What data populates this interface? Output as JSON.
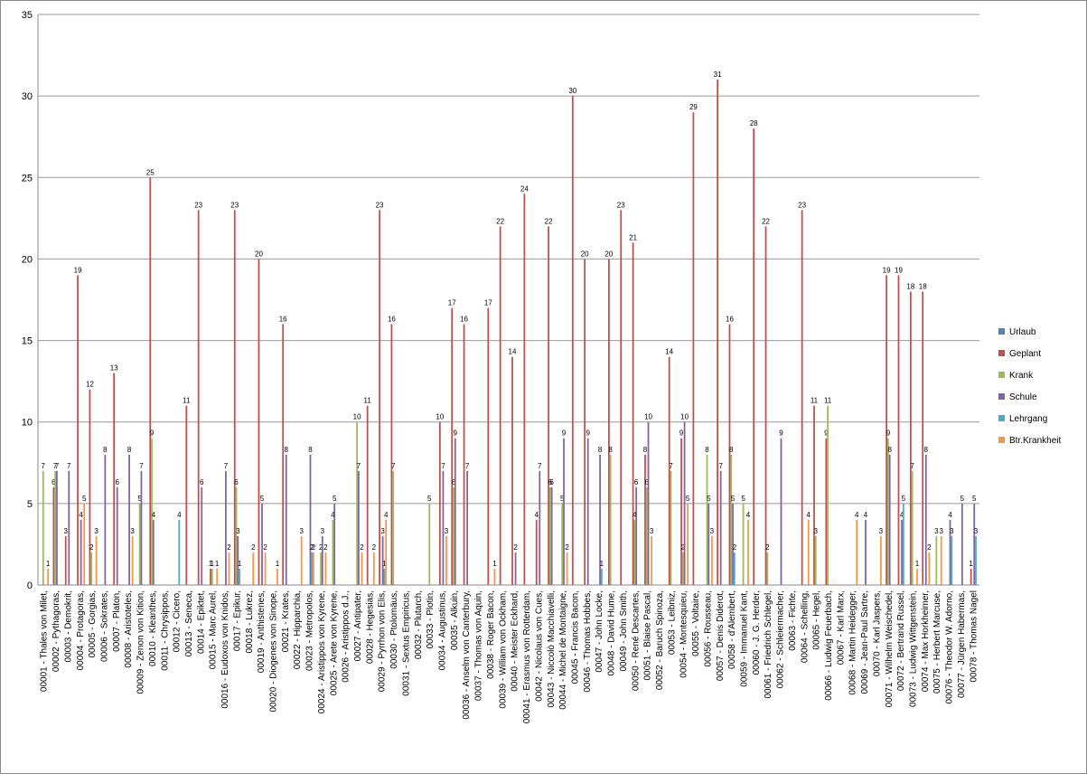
{
  "chart_data": {
    "type": "bar",
    "categories": [
      "00001 - Thales von Milet,",
      "00002 - Pythagoras,",
      "00003 - Demokrit,",
      "00004 - Protagoras,",
      "00005 - Gorgias,",
      "00006 - Sokrates,",
      "00007 - Platon,",
      "00008 - Aristoteles,",
      "00009 - Zenon von Kition,",
      "00010 - Kleanthes,",
      "00011 - Chrysippos,",
      "00012 - Cicero,",
      "00013 - Seneca,",
      "00014 - Epiktet,",
      "00015 - Marc Aurel,",
      "00016 - Eudoxos von Knidos,",
      "00017 - Epikur,",
      "00018 - Lukrez,",
      "00019 - Anthistenes,",
      "00020 - Diogenes von Sinope,",
      "00021 - Krates,",
      "00022 - Hipparchia,",
      "00023 - Metropolos,",
      "00024 - Aristippos von Kyrene,",
      "00025 - Arete von Kyrene,",
      "00026 - Aristippos d.J.,",
      "00027 - Antipater,",
      "00028 - Hegesias,",
      "00029 - Pyrrhon von Elis,",
      "00030 - Ptolomäus,",
      "00031 - Sextus Empiricus,",
      "00032 - Plutarch,",
      "00033 - Plotin,",
      "00034 - Augustinus,",
      "00035 - Alkuin,",
      "00036 - Anselm von Canterbury,",
      "00037 - Thomas von Aquin,",
      "00038 - Roger Bacon,",
      "00039 - William von Ockham,",
      "00040 - Meister Eckhard,",
      "00041 - Erasmus von Rotterdam,",
      "00042 - Nicolaus von Cues,",
      "00043 - Niccolò Macchiavelli,",
      "00044 - Michel de Montaigne,",
      "00045 - Francis Bacon,",
      "00046 - Thomas Hobbes,",
      "00047 - John Locke,",
      "00048 - David Hume,",
      "00049 - John Smith,",
      "00050 - René Descartes,",
      "00051 - Blaise Pascal,",
      "00052 - Baruch Spinoza,",
      "00053 - Leibniz,",
      "00054 - Montesquieu,",
      "00055 - Voltaire,",
      "00056 - Rousseau,",
      "00057 - Denis Diderot,",
      "00058 - d'Alembert,",
      "00059 - Immanuel Kant,",
      "00060 - J. G. Herder,",
      "00061 - Friedrich Schlegel,",
      "00062 - Schleiermacher,",
      "00063 - Fichte,",
      "00064 - Schelling,",
      "00065 - Hegel,",
      "00066 - Ludwig Feuerbach,",
      "00067 - Karl Marx,",
      "00068 - Martin Heidegger,",
      "00069 - Jean-Paul Sartre,",
      "00070 - Karl Jaspers,",
      "00071 - Wilhelm Weischedel,",
      "00072 - Bertrand Russel,",
      "00073 - Ludwig Wittgenstein,",
      "00074 - Max Horkheimer,",
      "00075 - Herbert Marcuse,",
      "00076 - Theodor W. Adorno,",
      "00077 - Jürgen Habermas,",
      "00078 - Thomas Nagel"
    ],
    "series": [
      {
        "name": "Urlaub",
        "color": "#4f81bd",
        "values": [
          0,
          0,
          0,
          0,
          0,
          0,
          0,
          0,
          0,
          0,
          0,
          0,
          0,
          0,
          0,
          0,
          0,
          0,
          0,
          0,
          0,
          0,
          0,
          0,
          0,
          0,
          0,
          0,
          0,
          0,
          0,
          0,
          0,
          0,
          0,
          0,
          0,
          0,
          0,
          0,
          0,
          0,
          0,
          0,
          0,
          0,
          0,
          0,
          0,
          0,
          0,
          0,
          0,
          0,
          0,
          0,
          0,
          0,
          0,
          0,
          0,
          0,
          0,
          0,
          0,
          0,
          0,
          0,
          0,
          0,
          0,
          0,
          0,
          0,
          0,
          0,
          0,
          0
        ]
      },
      {
        "name": "Geplant",
        "color": "#c0504d",
        "values": [
          0,
          6,
          3,
          19,
          12,
          0,
          13,
          0,
          0,
          25,
          0,
          0,
          11,
          23,
          1,
          0,
          23,
          0,
          20,
          0,
          16,
          0,
          0,
          0,
          0,
          0,
          0,
          11,
          23,
          16,
          0,
          0,
          0,
          10,
          17,
          16,
          0,
          17,
          22,
          14,
          24,
          4,
          22,
          0,
          30,
          20,
          0,
          20,
          23,
          21,
          8,
          0,
          14,
          9,
          29,
          0,
          31,
          16,
          0,
          28,
          22,
          0,
          0,
          23,
          11,
          9,
          0,
          0,
          0,
          0,
          19,
          19,
          18,
          18,
          0,
          0,
          0,
          1
        ]
      },
      {
        "name": "Krank",
        "color": "#9bbb59",
        "values": [
          7,
          7,
          0,
          0,
          2,
          0,
          0,
          0,
          5,
          9,
          0,
          0,
          0,
          0,
          1,
          0,
          6,
          0,
          0,
          0,
          0,
          0,
          0,
          2,
          4,
          0,
          10,
          0,
          0,
          7,
          0,
          0,
          5,
          0,
          6,
          0,
          0,
          0,
          0,
          0,
          0,
          0,
          6,
          5,
          0,
          0,
          0,
          8,
          0,
          4,
          6,
          0,
          7,
          2,
          0,
          8,
          0,
          8,
          5,
          0,
          2,
          0,
          0,
          0,
          3,
          11,
          0,
          0,
          0,
          0,
          9,
          0,
          7,
          0,
          3,
          0,
          0,
          0
        ]
      },
      {
        "name": "Schule",
        "color": "#8064a2",
        "values": [
          0,
          7,
          7,
          4,
          0,
          8,
          6,
          8,
          7,
          4,
          0,
          0,
          0,
          6,
          0,
          7,
          3,
          0,
          5,
          0,
          8,
          0,
          8,
          3,
          5,
          0,
          7,
          0,
          3,
          0,
          0,
          0,
          0,
          7,
          9,
          7,
          0,
          0,
          0,
          2,
          0,
          7,
          6,
          9,
          0,
          9,
          8,
          0,
          0,
          6,
          10,
          0,
          0,
          10,
          0,
          5,
          7,
          5,
          0,
          0,
          0,
          9,
          0,
          0,
          0,
          0,
          0,
          0,
          4,
          0,
          8,
          4,
          0,
          8,
          0,
          4,
          5,
          5
        ]
      },
      {
        "name": "Lehrgang",
        "color": "#4bacc6",
        "values": [
          0,
          0,
          0,
          0,
          0,
          0,
          0,
          0,
          0,
          0,
          0,
          4,
          0,
          0,
          0,
          0,
          1,
          0,
          0,
          0,
          0,
          0,
          2,
          0,
          0,
          0,
          0,
          0,
          1,
          0,
          0,
          0,
          0,
          0,
          0,
          0,
          0,
          0,
          0,
          0,
          0,
          0,
          0,
          0,
          0,
          0,
          1,
          0,
          0,
          0,
          0,
          0,
          0,
          0,
          0,
          0,
          0,
          2,
          0,
          0,
          0,
          0,
          0,
          0,
          0,
          0,
          0,
          0,
          0,
          0,
          0,
          5,
          0,
          0,
          0,
          3,
          0,
          3
        ]
      },
      {
        "name": "Btr.Krankheit",
        "color": "#f79646",
        "values": [
          1,
          0,
          0,
          5,
          3,
          0,
          0,
          3,
          0,
          0,
          0,
          0,
          0,
          0,
          1,
          2,
          0,
          2,
          2,
          1,
          0,
          3,
          2,
          2,
          0,
          0,
          2,
          2,
          4,
          0,
          0,
          0,
          0,
          3,
          0,
          0,
          0,
          1,
          0,
          0,
          0,
          0,
          0,
          2,
          0,
          0,
          0,
          0,
          0,
          0,
          3,
          0,
          0,
          5,
          0,
          3,
          0,
          0,
          4,
          0,
          0,
          0,
          0,
          4,
          0,
          0,
          0,
          4,
          0,
          3,
          0,
          0,
          1,
          2,
          3,
          0,
          0,
          0
        ]
      }
    ],
    "ylim": [
      0,
      35
    ],
    "yticks": [
      0,
      5,
      10,
      15,
      20,
      25,
      30,
      35
    ],
    "grid": true,
    "legend": "right"
  }
}
